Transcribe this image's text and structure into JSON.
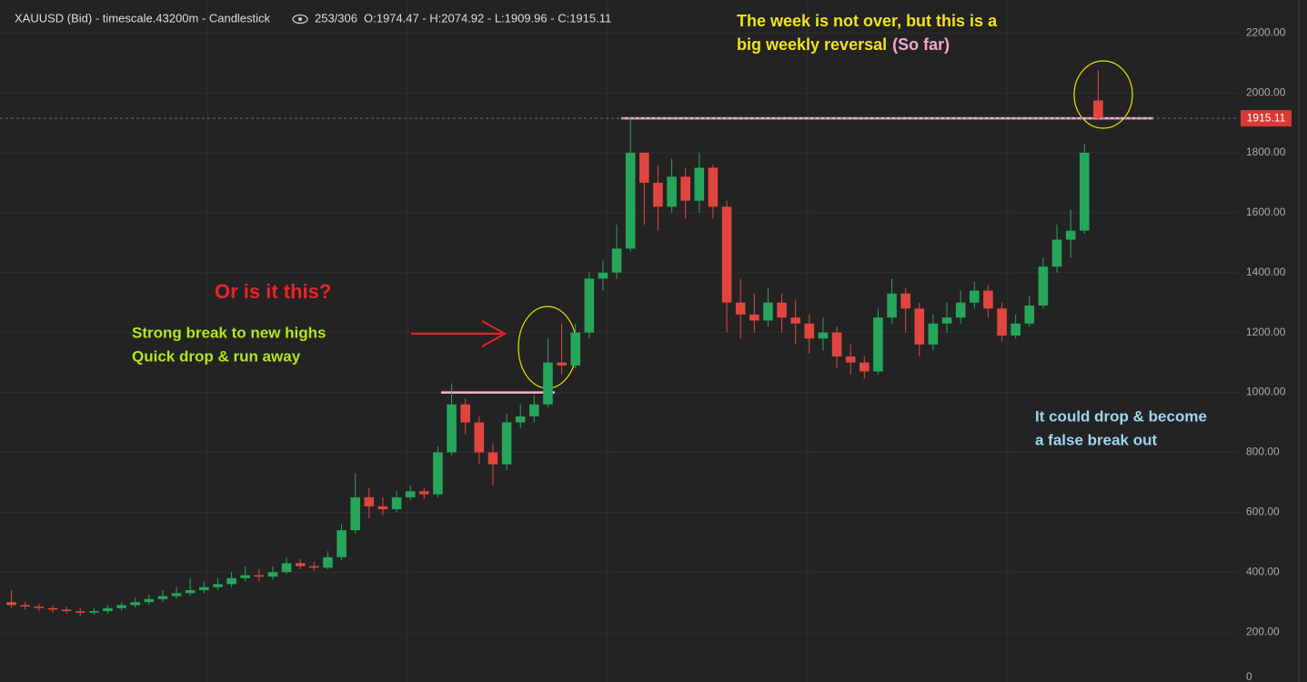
{
  "header": {
    "symbol": "XAUUSD (Bid) - timescale.43200m - Candlestick",
    "count": "253/306",
    "ohlc": "O:1974.47 - H:2074.92 - L:1909.96 - C:1915.11"
  },
  "chart_data": {
    "type": "candlestick",
    "up_color": "#26a65b",
    "down_color": "#e0463f",
    "grid": true,
    "ylim": [
      0,
      2310
    ],
    "yticks": [
      0,
      {
        "value": 200,
        "label": "200.00"
      },
      {
        "value": 400,
        "label": "400.00"
      },
      {
        "value": 600,
        "label": "600.00"
      },
      {
        "value": 800,
        "label": "800.00"
      },
      {
        "value": 1000,
        "label": "1000.00"
      },
      {
        "value": 1200,
        "label": "1200.00"
      },
      {
        "value": 1400,
        "label": "1400.00"
      },
      {
        "value": 1600,
        "label": "1600.00"
      },
      {
        "value": 1800,
        "label": "1800.00"
      },
      {
        "value": 2000,
        "label": "2000.00"
      },
      {
        "value": 2200,
        "label": "2200.00"
      }
    ],
    "open": [
      300,
      290,
      285,
      280,
      275,
      270,
      265,
      270,
      280,
      290,
      300,
      310,
      320,
      330,
      340,
      350,
      360,
      380,
      390,
      385,
      400,
      430,
      420,
      415,
      450,
      540,
      650,
      620,
      610,
      650,
      670,
      660,
      800,
      960,
      900,
      800,
      760,
      900,
      920,
      960,
      1100,
      1090,
      1200,
      1380,
      1400,
      1480,
      1800,
      1700,
      1620,
      1720,
      1640,
      1750,
      1620,
      1300,
      1260,
      1240,
      1300,
      1250,
      1230,
      1180,
      1200,
      1120,
      1100,
      1070,
      1250,
      1330,
      1280,
      1160,
      1230,
      1250,
      1300,
      1340,
      1280,
      1190,
      1230,
      1290,
      1420,
      1510,
      1540,
      1974.47
    ],
    "high": [
      340,
      300,
      295,
      290,
      285,
      280,
      282,
      290,
      300,
      315,
      325,
      340,
      350,
      380,
      370,
      380,
      400,
      420,
      410,
      420,
      450,
      445,
      435,
      470,
      560,
      730,
      680,
      650,
      670,
      690,
      680,
      820,
      1030,
      980,
      920,
      830,
      930,
      960,
      990,
      1180,
      1230,
      1230,
      1400,
      1440,
      1560,
      1920,
      1800,
      1760,
      1780,
      1750,
      1800,
      1760,
      1640,
      1380,
      1330,
      1350,
      1330,
      1310,
      1260,
      1250,
      1220,
      1160,
      1120,
      1280,
      1380,
      1350,
      1300,
      1260,
      1300,
      1340,
      1370,
      1360,
      1300,
      1260,
      1320,
      1450,
      1560,
      1610,
      1830,
      2074.92
    ],
    "low": [
      280,
      275,
      270,
      265,
      262,
      255,
      258,
      262,
      272,
      282,
      292,
      300,
      312,
      322,
      330,
      340,
      350,
      370,
      370,
      375,
      395,
      410,
      405,
      410,
      440,
      530,
      580,
      590,
      600,
      640,
      645,
      650,
      790,
      860,
      760,
      690,
      740,
      880,
      900,
      950,
      1060,
      1080,
      1180,
      1340,
      1380,
      1470,
      1560,
      1540,
      1600,
      1580,
      1600,
      1580,
      1200,
      1180,
      1200,
      1220,
      1200,
      1160,
      1130,
      1140,
      1080,
      1060,
      1045,
      1060,
      1230,
      1200,
      1120,
      1140,
      1200,
      1230,
      1280,
      1250,
      1170,
      1180,
      1220,
      1280,
      1400,
      1450,
      1530,
      1909.96
    ],
    "close": [
      290,
      285,
      280,
      275,
      270,
      265,
      270,
      280,
      290,
      300,
      310,
      320,
      330,
      340,
      350,
      360,
      380,
      390,
      385,
      400,
      430,
      420,
      415,
      450,
      540,
      650,
      620,
      610,
      650,
      670,
      660,
      800,
      960,
      900,
      800,
      760,
      900,
      920,
      960,
      1100,
      1090,
      1200,
      1380,
      1400,
      1480,
      1800,
      1700,
      1620,
      1720,
      1640,
      1750,
      1620,
      1300,
      1260,
      1240,
      1300,
      1250,
      1230,
      1180,
      1200,
      1120,
      1100,
      1070,
      1250,
      1330,
      1280,
      1160,
      1230,
      1250,
      1300,
      1340,
      1280,
      1190,
      1230,
      1290,
      1420,
      1510,
      1540,
      1800,
      1915.11
    ],
    "reference_lines": [
      1000,
      1915
    ],
    "annotations": [
      {
        "lines": [
          "The week is not over, but this is a",
          "big weekly reversal"
        ],
        "color": "#f2e21b",
        "suffix": "(So far)",
        "suffix_color": "#f4a8c8"
      },
      {
        "lines": [
          "Or is it this?"
        ],
        "color": "#e8242a"
      },
      {
        "lines": [
          "Strong break to new highs",
          "Quick drop & run away"
        ],
        "color": "#b5e61d"
      },
      {
        "lines": [
          "It could drop & become",
          "a false break out"
        ],
        "color": "#9fd6f0"
      }
    ]
  }
}
